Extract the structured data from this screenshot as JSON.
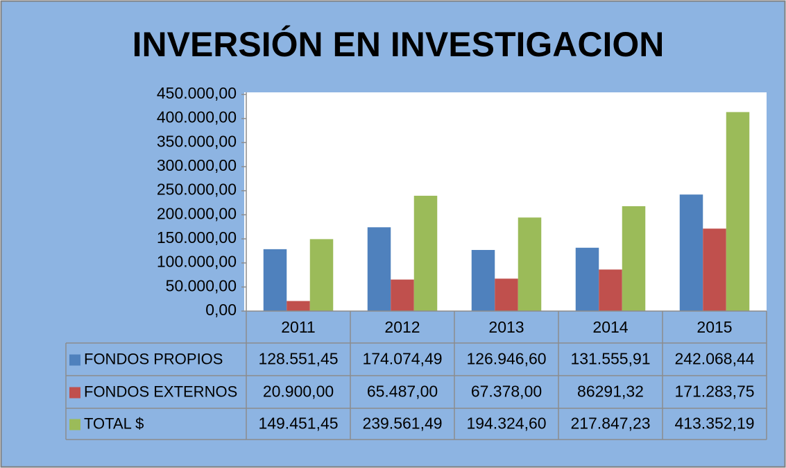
{
  "chart_data": {
    "type": "bar",
    "title": "INVERSIÓN EN INVESTIGACION",
    "categories": [
      "2011",
      "2012",
      "2013",
      "2014",
      "2015"
    ],
    "series": [
      {
        "name": "FONDOS PROPIOS",
        "color": "#4f81bd",
        "values": [
          128551.45,
          174074.49,
          126946.6,
          131555.91,
          242068.44
        ],
        "value_labels": [
          "128.551,45",
          "174.074,49",
          "126.946,60",
          "131.555,91",
          "242.068,44"
        ]
      },
      {
        "name": "FONDOS EXTERNOS",
        "color": "#c0504d",
        "values": [
          20900.0,
          65487.0,
          67378.0,
          86291.32,
          171283.75
        ],
        "value_labels": [
          "20.900,00",
          "65.487,00",
          "67.378,00",
          "86291,32",
          "171.283,75"
        ]
      },
      {
        "name": "TOTAL  $",
        "color": "#9bbb59",
        "values": [
          149451.45,
          239561.49,
          194324.6,
          217847.23,
          413352.19
        ],
        "value_labels": [
          "149.451,45",
          "239.561,49",
          "194.324,60",
          "217.847,23",
          "413.352,19"
        ]
      }
    ],
    "ylim": [
      0,
      450000
    ],
    "yticks": [
      {
        "value": 0,
        "label": "0,00"
      },
      {
        "value": 50000,
        "label": "50.000,00"
      },
      {
        "value": 100000,
        "label": "100.000,00"
      },
      {
        "value": 150000,
        "label": "150.000,00"
      },
      {
        "value": 200000,
        "label": "200.000,00"
      },
      {
        "value": 250000,
        "label": "250.000,00"
      },
      {
        "value": 300000,
        "label": "300.000,00"
      },
      {
        "value": 350000,
        "label": "350.000,00"
      },
      {
        "value": 400000,
        "label": "400.000,00"
      },
      {
        "value": 450000,
        "label": "450.000,00"
      }
    ]
  }
}
